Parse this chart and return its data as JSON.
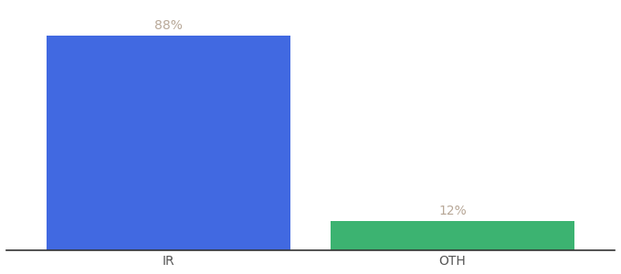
{
  "categories": [
    "IR",
    "OTH"
  ],
  "values": [
    88,
    12
  ],
  "bar_colors": [
    "#4169E1",
    "#3CB371"
  ],
  "label_color": "#b8a898",
  "label_fontsize": 10,
  "xlabel_fontsize": 10,
  "xlabel_color": "#555555",
  "background_color": "#ffffff",
  "ylim": [
    0,
    100
  ],
  "bar_width": 0.6,
  "annotations": [
    "88%",
    "12%"
  ],
  "x_positions": [
    0.3,
    1.0
  ]
}
